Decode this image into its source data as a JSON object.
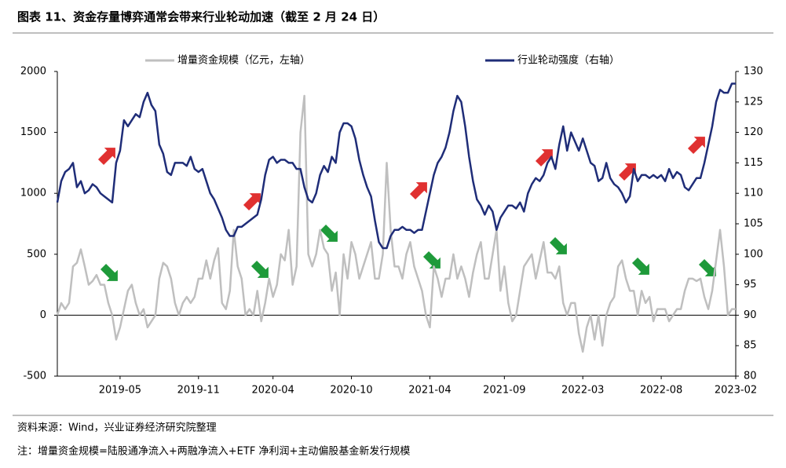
{
  "chart_data": {
    "type": "line",
    "title": "图表 11、资金存量博弈通常会带来行业轮动加速（截至 2 月 24 日）",
    "source": "资料来源：Wind，兴业证券经济研究院整理",
    "note": "注：增量资金规模=陆股通净流入+两融净流入+ETF 净利润+主动偏股基金新发行规模",
    "categories": [
      null,
      null,
      null,
      null,
      null,
      null,
      null,
      null,
      null,
      null,
      null,
      null,
      null,
      null,
      null,
      null,
      "2019-05",
      null,
      null,
      null,
      null,
      null,
      null,
      null,
      null,
      null,
      null,
      null,
      null,
      null,
      null,
      null,
      null,
      null,
      null,
      null,
      "2019-11",
      null,
      null,
      null,
      null,
      null,
      null,
      null,
      null,
      null,
      null,
      null,
      null,
      null,
      null,
      null,
      null,
      null,
      null,
      "2020-04",
      null,
      null,
      null,
      null,
      null,
      null,
      null,
      null,
      null,
      null,
      null,
      null,
      null,
      null,
      null,
      null,
      null,
      null,
      null,
      "2020-10",
      null,
      null,
      null,
      null,
      null,
      null,
      null,
      null,
      null,
      null,
      null,
      null,
      null,
      null,
      null,
      null,
      null,
      null,
      null,
      "2021-04",
      null,
      null,
      null,
      null,
      null,
      null,
      null,
      null,
      null,
      null,
      null,
      null,
      null,
      null,
      null,
      null,
      null,
      null,
      "2021-09",
      null,
      null,
      null,
      null,
      null,
      null,
      null,
      null,
      null,
      null,
      null,
      null,
      null,
      null,
      null,
      null,
      null,
      null,
      null,
      "2022-03",
      null,
      null,
      null,
      null,
      null,
      null,
      null,
      null,
      null,
      null,
      null,
      null,
      null,
      null,
      null,
      null,
      null,
      null,
      null,
      "2022-08",
      null,
      null,
      null,
      null,
      null,
      null,
      null,
      null,
      null,
      null,
      null,
      null,
      null,
      null,
      null,
      null,
      null,
      null,
      "2023-02"
    ],
    "series": [
      {
        "name": "增量资金规模（亿元，左轴）",
        "color": "#bfbfbf",
        "axis": "y",
        "values": [
          0,
          100,
          50,
          100,
          400,
          430,
          540,
          400,
          250,
          280,
          330,
          250,
          250,
          100,
          0,
          -200,
          -100,
          50,
          200,
          250,
          100,
          0,
          50,
          -100,
          -50,
          0,
          300,
          430,
          400,
          300,
          100,
          0,
          100,
          150,
          100,
          150,
          300,
          300,
          450,
          300,
          450,
          550,
          100,
          50,
          200,
          700,
          400,
          300,
          0,
          50,
          0,
          200,
          -50,
          100,
          300,
          150,
          250,
          500,
          450,
          700,
          250,
          400,
          1500,
          1800,
          500,
          400,
          500,
          700,
          550,
          500,
          200,
          350,
          0,
          500,
          300,
          600,
          500,
          300,
          400,
          500,
          600,
          300,
          300,
          500,
          1250,
          700,
          400,
          400,
          300,
          500,
          600,
          400,
          300,
          200,
          0,
          -100,
          400,
          300,
          150,
          300,
          300,
          500,
          300,
          400,
          300,
          150,
          350,
          500,
          600,
          300,
          300,
          500,
          700,
          200,
          400,
          100,
          -50,
          0,
          200,
          400,
          450,
          500,
          300,
          450,
          600,
          350,
          350,
          300,
          400,
          100,
          0,
          100,
          100,
          -150,
          -300,
          -100,
          0,
          -200,
          0,
          -250,
          0,
          100,
          150,
          400,
          450,
          300,
          200,
          200,
          0,
          200,
          100,
          150,
          -50,
          50,
          50,
          50,
          -50,
          0,
          50,
          50,
          200,
          300,
          300,
          280,
          300,
          150,
          50,
          200,
          450,
          700,
          400,
          0,
          50,
          50
        ]
      },
      {
        "name": "行业轮动强度（右轴）",
        "color": "#1f2d78",
        "axis": "y2",
        "values": [
          108.5,
          112,
          113.5,
          114,
          115,
          111,
          112,
          110,
          110.5,
          111.5,
          111,
          110,
          109.5,
          109,
          108.5,
          115,
          117,
          122,
          121,
          122,
          123,
          122.5,
          125,
          126.5,
          124.5,
          123.5,
          118,
          116.5,
          113.5,
          113,
          115,
          115,
          115,
          114.5,
          116,
          114,
          113.5,
          114,
          112,
          110,
          109,
          107.5,
          106,
          104,
          103,
          103,
          104.5,
          104.5,
          105,
          105.5,
          106,
          106.5,
          109,
          113,
          115.5,
          116,
          115,
          115.5,
          115.5,
          115,
          115,
          114,
          114,
          111,
          109,
          108.5,
          110,
          113,
          114.5,
          113.5,
          116,
          115,
          120,
          121.5,
          121.5,
          121,
          119,
          115.5,
          113,
          111,
          109.5,
          105.5,
          102,
          101,
          101,
          103,
          104,
          104,
          104.5,
          104,
          104,
          103.5,
          104,
          104,
          107,
          110,
          113,
          115,
          116,
          117.5,
          120,
          123.5,
          126,
          125,
          121,
          116,
          112,
          109,
          108,
          106.5,
          108,
          107,
          104,
          106,
          107,
          108,
          108,
          107.5,
          108.5,
          107,
          110,
          111.5,
          112.5,
          112,
          113,
          115,
          116,
          114,
          118,
          121,
          117,
          120,
          118.5,
          117,
          119,
          117,
          115,
          114.5,
          112,
          112.5,
          115,
          112.5,
          111.5,
          111,
          110,
          108.5,
          109.5,
          114,
          112,
          113,
          113,
          112.5,
          113,
          112.5,
          113,
          112,
          114,
          112.5,
          113.5,
          113,
          111,
          110.5,
          111.5,
          112.5,
          112.5,
          115,
          118,
          121,
          125,
          127,
          126.5,
          126.5,
          128,
          128
        ]
      }
    ],
    "ylim": [
      -500,
      2000
    ],
    "yticks": [
      -500,
      0,
      500,
      1000,
      1500,
      2000
    ],
    "y2lim": [
      80,
      130
    ],
    "y2ticks": [
      80,
      85,
      90,
      95,
      100,
      105,
      110,
      115,
      120,
      125,
      130
    ]
  }
}
